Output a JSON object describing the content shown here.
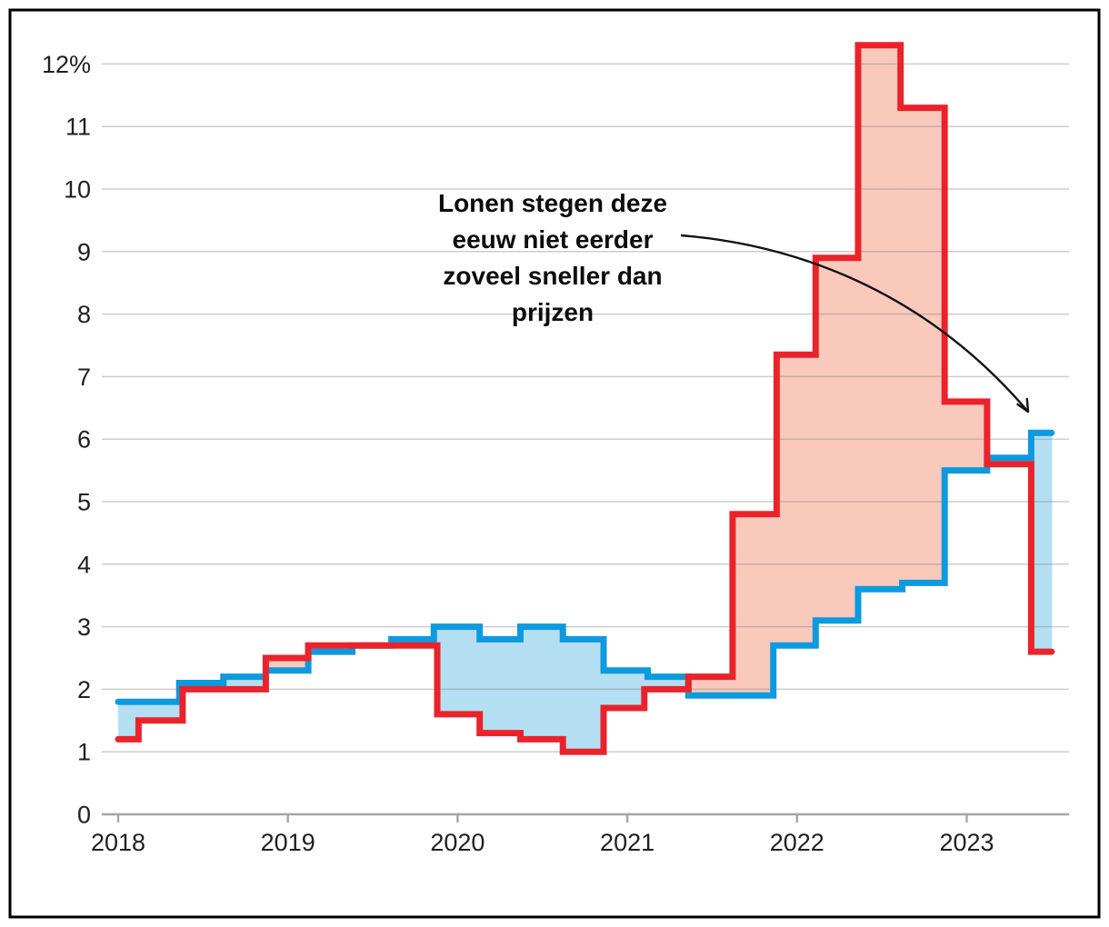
{
  "annotation": {
    "lines": [
      "Lonen stegen deze",
      "eeuw niet eerder",
      "zoveel sneller dan",
      "prijzen"
    ]
  },
  "chart_data": {
    "type": "line",
    "subtype": "step-lines-with-difference-area",
    "title": "",
    "x_axis": {
      "tick_labels": [
        "2018",
        "2019",
        "2020",
        "2021",
        "2022",
        "2023"
      ],
      "tick_years": [
        2018,
        2019,
        2020,
        2021,
        2022,
        2023
      ],
      "start": 2018.0,
      "end": 2023.5
    },
    "y_axis": {
      "min": 0,
      "max": 12,
      "tick_step": 1,
      "tick_labels": [
        "0",
        "1",
        "2",
        "3",
        "4",
        "5",
        "6",
        "7",
        "8",
        "9",
        "10",
        "11",
        "12%"
      ],
      "grid": true
    },
    "series": [
      {
        "id": "prices_red",
        "name_hint_from_annotation": "prijzen",
        "line_color": "#ea232b",
        "area_color_when_above": "#f9c9bc",
        "points": [
          [
            2018.0,
            1.2
          ],
          [
            2018.12,
            1.5
          ],
          [
            2018.38,
            2.0
          ],
          [
            2018.87,
            2.5
          ],
          [
            2019.12,
            2.7
          ],
          [
            2019.88,
            1.6
          ],
          [
            2020.13,
            1.3
          ],
          [
            2020.37,
            1.2
          ],
          [
            2020.62,
            1.0
          ],
          [
            2020.86,
            1.7
          ],
          [
            2021.1,
            2.0
          ],
          [
            2021.36,
            2.2
          ],
          [
            2021.62,
            4.8
          ],
          [
            2021.88,
            7.35
          ],
          [
            2022.11,
            8.9
          ],
          [
            2022.36,
            12.3
          ],
          [
            2022.61,
            11.3
          ],
          [
            2022.87,
            6.6
          ],
          [
            2023.12,
            5.6
          ],
          [
            2023.38,
            2.6
          ]
        ]
      },
      {
        "id": "wages_blue",
        "name_hint_from_annotation": "lonen",
        "line_color": "#0d9ade",
        "area_color_when_above": "#b4dff2",
        "points": [
          [
            2018.0,
            1.8
          ],
          [
            2018.36,
            2.1
          ],
          [
            2018.62,
            2.2
          ],
          [
            2018.87,
            2.3
          ],
          [
            2019.12,
            2.6
          ],
          [
            2019.38,
            2.7
          ],
          [
            2019.61,
            2.8
          ],
          [
            2019.86,
            3.0
          ],
          [
            2020.13,
            2.8
          ],
          [
            2020.37,
            3.0
          ],
          [
            2020.62,
            2.8
          ],
          [
            2020.86,
            2.3
          ],
          [
            2021.12,
            2.2
          ],
          [
            2021.36,
            1.9
          ],
          [
            2021.86,
            2.7
          ],
          [
            2022.11,
            3.1
          ],
          [
            2022.36,
            3.6
          ],
          [
            2022.62,
            3.7
          ],
          [
            2022.87,
            5.5
          ],
          [
            2023.12,
            5.7
          ],
          [
            2023.38,
            6.1
          ]
        ]
      }
    ],
    "colors": {
      "gridline": "#c9c9c9",
      "zero_axis": "#a6a6a6",
      "axis_text": "#1f1f1f",
      "arrow": "#111111",
      "frame": "#000000",
      "background": "#ffffff"
    }
  }
}
